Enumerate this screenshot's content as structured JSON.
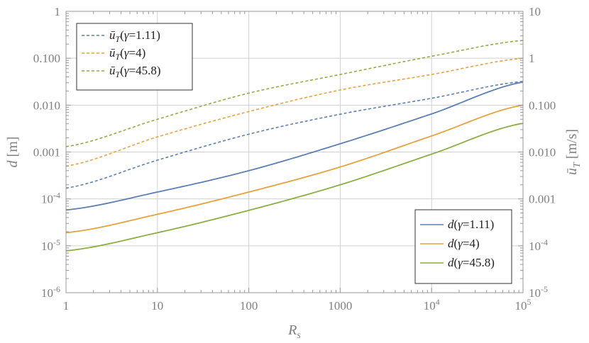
{
  "chart_data": {
    "type": "line",
    "x_scale": "log",
    "xlim": [
      1,
      100000
    ],
    "x_ticks": [
      {
        "v": 1,
        "label": "1"
      },
      {
        "v": 10,
        "label": "10"
      },
      {
        "v": 100,
        "label": "100"
      },
      {
        "v": 1000,
        "label": "1000"
      },
      {
        "v": 10000,
        "label": "10",
        "sup": "4"
      },
      {
        "v": 100000,
        "label": "10",
        "sup": "5"
      }
    ],
    "xlabel": {
      "main": "R",
      "sub": "s"
    },
    "left_axis": {
      "label": "d [m]",
      "scale": "log",
      "lim": [
        1e-06,
        1
      ],
      "ticks": [
        {
          "v": 1e-06,
          "label": "10",
          "sup": "-6"
        },
        {
          "v": 1e-05,
          "label": "10",
          "sup": "-5"
        },
        {
          "v": 0.0001,
          "label": "10",
          "sup": "-4"
        },
        {
          "v": 0.001,
          "label": "0.001"
        },
        {
          "v": 0.01,
          "label": "0.010"
        },
        {
          "v": 0.1,
          "label": "0.100"
        },
        {
          "v": 1,
          "label": "1"
        }
      ]
    },
    "right_axis": {
      "label": "ū_T [m/s]",
      "scale": "log",
      "lim": [
        1e-05,
        10
      ],
      "ticks": [
        {
          "v": 1e-05,
          "label": "10",
          "sup": "-5"
        },
        {
          "v": 0.0001,
          "label": "10",
          "sup": "-4"
        },
        {
          "v": 0.001,
          "label": "0.001"
        },
        {
          "v": 0.01,
          "label": "0.010"
        },
        {
          "v": 0.1,
          "label": "0.100"
        },
        {
          "v": 1,
          "label": "1"
        },
        {
          "v": 10,
          "label": "10"
        }
      ]
    },
    "grid": true,
    "legends": [
      {
        "placement": "top-left",
        "series": [
          "u_1.11",
          "u_4",
          "u_45.8"
        ]
      },
      {
        "placement": "bottom-right",
        "series": [
          "d_1.11",
          "d_4",
          "d_45.8"
        ]
      }
    ],
    "series": [
      {
        "id": "u_1.11",
        "legend": {
          "sym": "ū",
          "sub": "T",
          "gamma": "1.11"
        },
        "axis": "right",
        "style": "dashed",
        "color": "#5b7fb5",
        "x": [
          1,
          10,
          100,
          1000,
          10000,
          100000
        ],
        "values": [
          0.0017,
          0.0067,
          0.024,
          0.064,
          0.14,
          0.32
        ]
      },
      {
        "id": "u_4",
        "legend": {
          "sym": "ū",
          "sub": "T",
          "gamma": "4"
        },
        "axis": "right",
        "style": "dashed",
        "color": "#e5a33d",
        "x": [
          1,
          10,
          100,
          1000,
          10000,
          100000
        ],
        "values": [
          0.005,
          0.021,
          0.073,
          0.21,
          0.45,
          1.0
        ]
      },
      {
        "id": "u_45.8",
        "legend": {
          "sym": "ū",
          "sub": "T",
          "gamma": "45.8"
        },
        "axis": "right",
        "style": "dashed",
        "color": "#8aaf42",
        "x": [
          1,
          10,
          100,
          1000,
          10000,
          100000
        ],
        "values": [
          0.013,
          0.05,
          0.18,
          0.45,
          1.1,
          2.4
        ]
      },
      {
        "id": "d_1.11",
        "legend": {
          "sym": "d",
          "sub": "",
          "gamma": "1.11"
        },
        "axis": "left",
        "style": "solid",
        "color": "#5b7fb5",
        "x": [
          1,
          10,
          100,
          1000,
          10000,
          100000
        ],
        "values": [
          5.8e-05,
          0.00014,
          0.0004,
          0.0015,
          0.0065,
          0.031
        ]
      },
      {
        "id": "d_4",
        "legend": {
          "sym": "d",
          "sub": "",
          "gamma": "4"
        },
        "axis": "left",
        "style": "solid",
        "color": "#e5a33d",
        "x": [
          1,
          10,
          100,
          1000,
          10000,
          100000
        ],
        "values": [
          1.9e-05,
          4.7e-05,
          0.00014,
          0.00048,
          0.0022,
          0.01
        ]
      },
      {
        "id": "d_45.8",
        "legend": {
          "sym": "d",
          "sub": "",
          "gamma": "45.8"
        },
        "axis": "left",
        "style": "solid",
        "color": "#8aaf42",
        "x": [
          1,
          10,
          100,
          1000,
          10000,
          100000
        ],
        "values": [
          7.8e-06,
          1.9e-05,
          5.7e-05,
          0.0002,
          0.0009,
          0.0041
        ]
      }
    ]
  }
}
